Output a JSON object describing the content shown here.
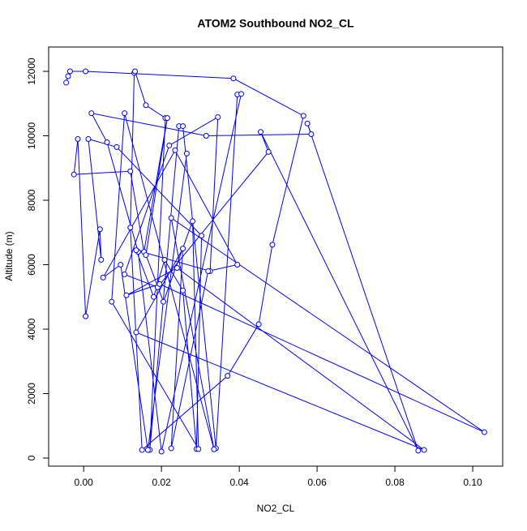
{
  "chart_data": {
    "type": "line",
    "markers": true,
    "title": "ATOM2 Southbound NO2_CL",
    "x_label": "NO2_CL",
    "y_label": "Altitude (m)",
    "color": "#0000ff",
    "xlim": [
      -0.009,
      0.1077
    ],
    "ylim": [
      -252,
      12755
    ],
    "xticks": [
      {
        "value": 0,
        "label": "0.00"
      },
      {
        "value": 0.02,
        "label": "0.02"
      },
      {
        "value": 0.04,
        "label": "0.04"
      },
      {
        "value": 0.06,
        "label": "0.06"
      },
      {
        "value": 0.08,
        "label": "0.08"
      },
      {
        "value": 0.1,
        "label": "0.10"
      }
    ],
    "yticks": [
      0,
      2000,
      4000,
      6000,
      8000,
      10000,
      12000
    ],
    "x": [
      -0.0045,
      -0.004,
      -0.0035,
      0.0005,
      0.0385,
      0.0565,
      0.0485,
      0.045,
      0.037,
      0.015,
      0.012,
      0.013,
      0.0132,
      0.016,
      0.021,
      0.017,
      0.0245,
      0.0255,
      0.034,
      0.0395,
      0.0405,
      0.02,
      0.014,
      0.006,
      0.002,
      0.0315,
      0.0585,
      0.0575,
      0.086,
      0.0455,
      0.0475,
      0.019,
      0.0105,
      0.022,
      0.0345,
      0.0325,
      0.0135,
      0.018,
      0.0208,
      0.0255,
      0.029,
      0.0303,
      0.0085,
      0.0012,
      0.0045,
      0.0042,
      0.0005,
      -0.0015,
      -0.0025,
      0.012,
      0.0155,
      0.0215,
      0.016,
      0.0205,
      0.028,
      0.0295,
      0.0072,
      0.0105,
      0.0335,
      0.0225,
      0.103,
      0.0195,
      0.011,
      0.024,
      0.0875,
      0.0135,
      0.0255,
      0.0225,
      0.032,
      0.0395,
      0.0235,
      0.005,
      0.0095,
      0.0165,
      0.0265
    ],
    "y": [
      11650,
      11850,
      12000,
      12000,
      11780,
      10620,
      6620,
      4150,
      2550,
      250,
      7150,
      11950,
      12000,
      10950,
      10550,
      250,
      10300,
      10300,
      300,
      11280,
      11300,
      200,
      6400,
      9800,
      10700,
      10000,
      10050,
      10380,
      230,
      10120,
      9500,
      5300,
      5700,
      9700,
      10580,
      5800,
      6450,
      5000,
      6150,
      5200,
      280,
      6900,
      9650,
      9900,
      6150,
      7100,
      4400,
      9900,
      8800,
      8900,
      6400,
      10550,
      6300,
      4850,
      7350,
      280,
      4850,
      10700,
      270,
      7450,
      800,
      5400,
      5050,
      5900,
      250,
      3900,
      6500,
      300,
      5800,
      6000,
      9550,
      5600,
      6000,
      250,
      9450
    ]
  }
}
